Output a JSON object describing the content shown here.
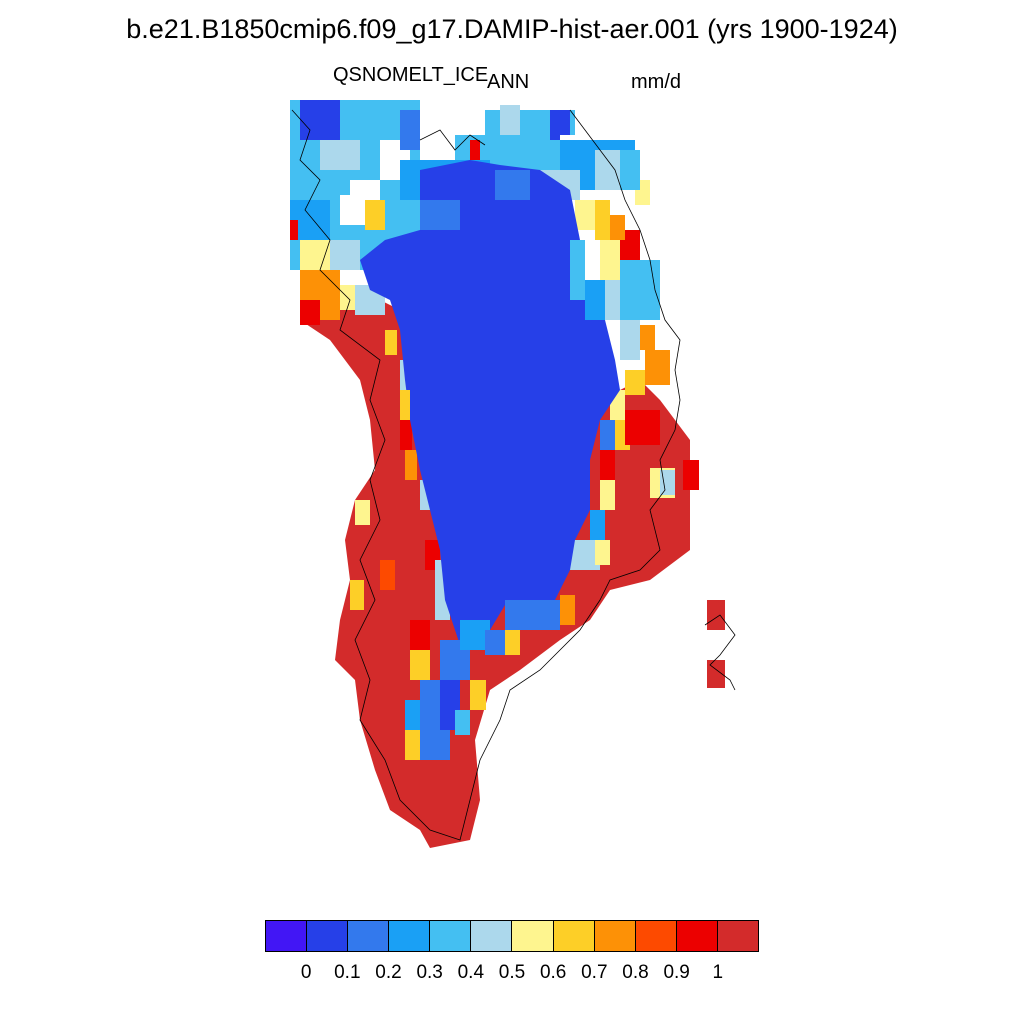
{
  "title": "b.e21.B1850cmip6.f09_g17.DAMIP-hist-aer.001 (yrs 1900-1924)",
  "variable": "QSNOMELT_ICE",
  "season": "ANN",
  "units": "mm/d",
  "colorbar": {
    "colors": [
      "#4216f5",
      "#2640e8",
      "#3379ed",
      "#1aa0f5",
      "#44bff2",
      "#acd8ec",
      "#fef58f",
      "#fdcf27",
      "#fd9106",
      "#fd4a00",
      "#ec0000",
      "#d32b2b"
    ],
    "labels": [
      "0",
      "0.1",
      "0.2",
      "0.3",
      "0.4",
      "0.5",
      "0.6",
      "0.7",
      "0.8",
      "0.9",
      "1"
    ]
  }
}
